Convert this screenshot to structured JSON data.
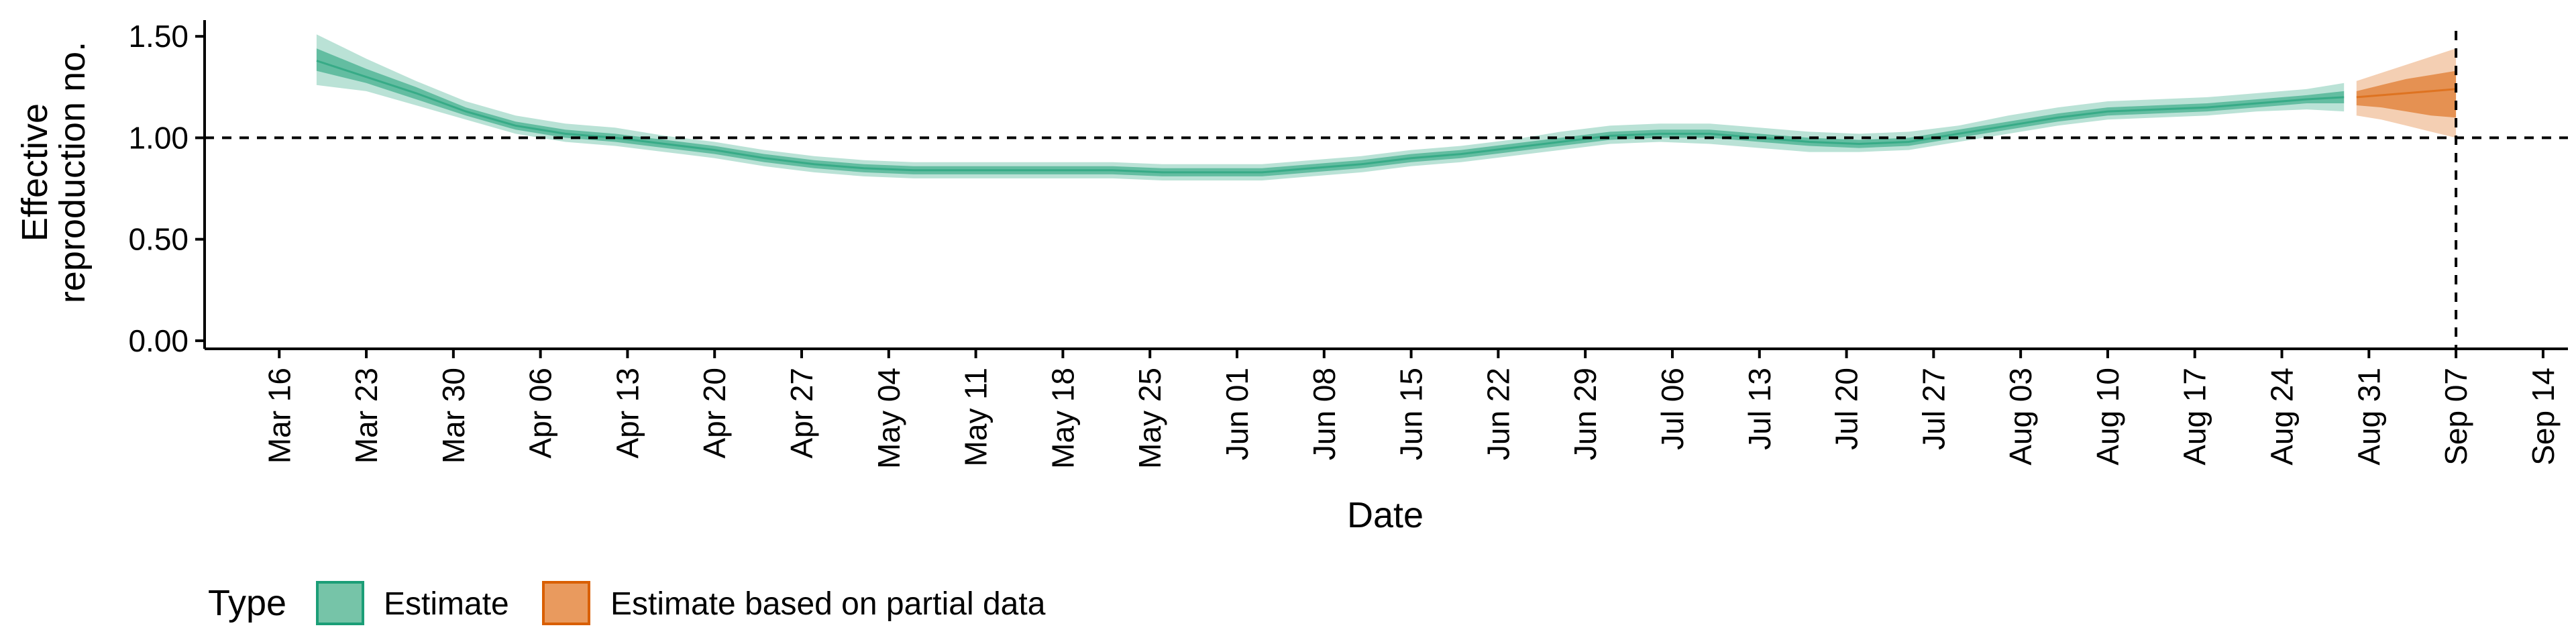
{
  "chart_data": {
    "type": "area",
    "xlabel": "Date",
    "ylabel_lines": [
      "Effective",
      "reproduction no."
    ],
    "ylim": [
      -0.04,
      1.58
    ],
    "yticks": [
      0.0,
      0.5,
      1.0,
      1.5
    ],
    "ytick_labels": [
      "0.00",
      "0.50",
      "1.00",
      "1.50"
    ],
    "x_start": "2020-03-10",
    "x_end": "2020-09-16",
    "xtick_labels": [
      "Mar 16",
      "Mar 23",
      "Mar 30",
      "Apr 06",
      "Apr 13",
      "Apr 20",
      "Apr 27",
      "May 04",
      "May 11",
      "May 18",
      "May 25",
      "Jun 01",
      "Jun 08",
      "Jun 15",
      "Jun 22",
      "Jun 29",
      "Jul 06",
      "Jul 13",
      "Jul 20",
      "Jul 27",
      "Aug 03",
      "Aug 10",
      "Aug 17",
      "Aug 24",
      "Aug 31",
      "Sep 07",
      "Sep 14"
    ],
    "xtick_dates": [
      "2020-03-16",
      "2020-03-23",
      "2020-03-30",
      "2020-04-06",
      "2020-04-13",
      "2020-04-20",
      "2020-04-27",
      "2020-05-04",
      "2020-05-11",
      "2020-05-18",
      "2020-05-25",
      "2020-06-01",
      "2020-06-08",
      "2020-06-15",
      "2020-06-22",
      "2020-06-29",
      "2020-07-06",
      "2020-07-13",
      "2020-07-20",
      "2020-07-27",
      "2020-08-03",
      "2020-08-10",
      "2020-08-17",
      "2020-08-24",
      "2020-08-31",
      "2020-09-07",
      "2020-09-14"
    ],
    "reference_hline": 1.0,
    "reference_vline_date": "2020-09-07",
    "legend_title": "Type",
    "legend_position": "bottom",
    "series": [
      {
        "name": "Estimate",
        "color": "#1b9e77",
        "x": [
          "2020-03-19",
          "2020-03-23",
          "2020-03-27",
          "2020-03-31",
          "2020-04-04",
          "2020-04-08",
          "2020-04-12",
          "2020-04-16",
          "2020-04-20",
          "2020-04-24",
          "2020-04-28",
          "2020-05-02",
          "2020-05-06",
          "2020-05-10",
          "2020-05-14",
          "2020-05-18",
          "2020-05-22",
          "2020-05-26",
          "2020-05-30",
          "2020-06-03",
          "2020-06-07",
          "2020-06-11",
          "2020-06-15",
          "2020-06-19",
          "2020-06-23",
          "2020-06-27",
          "2020-07-01",
          "2020-07-05",
          "2020-07-09",
          "2020-07-13",
          "2020-07-17",
          "2020-07-21",
          "2020-07-25",
          "2020-07-29",
          "2020-08-02",
          "2020-08-06",
          "2020-08-10",
          "2020-08-14",
          "2020-08-18",
          "2020-08-22",
          "2020-08-26",
          "2020-08-29"
        ],
        "median": [
          1.38,
          1.3,
          1.22,
          1.13,
          1.06,
          1.02,
          1.0,
          0.97,
          0.94,
          0.9,
          0.87,
          0.85,
          0.84,
          0.84,
          0.84,
          0.84,
          0.84,
          0.83,
          0.83,
          0.83,
          0.85,
          0.87,
          0.9,
          0.92,
          0.95,
          0.98,
          1.01,
          1.02,
          1.02,
          1.0,
          0.98,
          0.97,
          0.98,
          1.02,
          1.06,
          1.1,
          1.13,
          1.14,
          1.15,
          1.17,
          1.19,
          1.2
        ],
        "inner_lower": [
          1.33,
          1.27,
          1.19,
          1.11,
          1.04,
          1.0,
          0.98,
          0.95,
          0.92,
          0.88,
          0.85,
          0.83,
          0.82,
          0.82,
          0.82,
          0.82,
          0.82,
          0.81,
          0.81,
          0.81,
          0.83,
          0.85,
          0.88,
          0.9,
          0.93,
          0.96,
          0.99,
          1.0,
          1.0,
          0.98,
          0.96,
          0.95,
          0.96,
          1.0,
          1.04,
          1.08,
          1.11,
          1.12,
          1.13,
          1.15,
          1.17,
          1.17
        ],
        "inner_upper": [
          1.44,
          1.34,
          1.25,
          1.15,
          1.08,
          1.04,
          1.02,
          0.99,
          0.96,
          0.92,
          0.89,
          0.87,
          0.86,
          0.86,
          0.86,
          0.86,
          0.86,
          0.85,
          0.85,
          0.85,
          0.87,
          0.89,
          0.92,
          0.94,
          0.97,
          1.0,
          1.03,
          1.04,
          1.04,
          1.02,
          1.0,
          0.99,
          1.0,
          1.04,
          1.08,
          1.12,
          1.15,
          1.16,
          1.17,
          1.19,
          1.21,
          1.23
        ],
        "outer_lower": [
          1.26,
          1.23,
          1.16,
          1.09,
          1.02,
          0.98,
          0.96,
          0.93,
          0.9,
          0.86,
          0.83,
          0.81,
          0.8,
          0.8,
          0.8,
          0.8,
          0.8,
          0.79,
          0.79,
          0.79,
          0.81,
          0.83,
          0.86,
          0.88,
          0.91,
          0.94,
          0.97,
          0.98,
          0.97,
          0.95,
          0.93,
          0.93,
          0.94,
          0.98,
          1.02,
          1.06,
          1.09,
          1.1,
          1.11,
          1.13,
          1.14,
          1.13
        ],
        "outer_upper": [
          1.51,
          1.39,
          1.28,
          1.18,
          1.11,
          1.07,
          1.05,
          1.01,
          0.98,
          0.94,
          0.91,
          0.89,
          0.88,
          0.88,
          0.88,
          0.88,
          0.88,
          0.87,
          0.87,
          0.87,
          0.89,
          0.91,
          0.94,
          0.96,
          0.99,
          1.03,
          1.06,
          1.07,
          1.07,
          1.05,
          1.03,
          1.02,
          1.03,
          1.06,
          1.11,
          1.15,
          1.18,
          1.19,
          1.2,
          1.22,
          1.24,
          1.27
        ]
      },
      {
        "name": "Estimate based on partial data",
        "color": "#d95f02",
        "x": [
          "2020-08-30",
          "2020-09-01",
          "2020-09-03",
          "2020-09-05",
          "2020-09-07"
        ],
        "median": [
          1.2,
          1.21,
          1.22,
          1.23,
          1.24
        ],
        "inner_lower": [
          1.16,
          1.15,
          1.13,
          1.11,
          1.1
        ],
        "inner_upper": [
          1.23,
          1.26,
          1.29,
          1.31,
          1.33
        ],
        "outer_lower": [
          1.11,
          1.09,
          1.06,
          1.03,
          1.0
        ],
        "outer_upper": [
          1.28,
          1.32,
          1.36,
          1.4,
          1.44
        ]
      }
    ]
  },
  "legend": {
    "title": "Type",
    "items": [
      "Estimate",
      "Estimate based on partial data"
    ]
  }
}
